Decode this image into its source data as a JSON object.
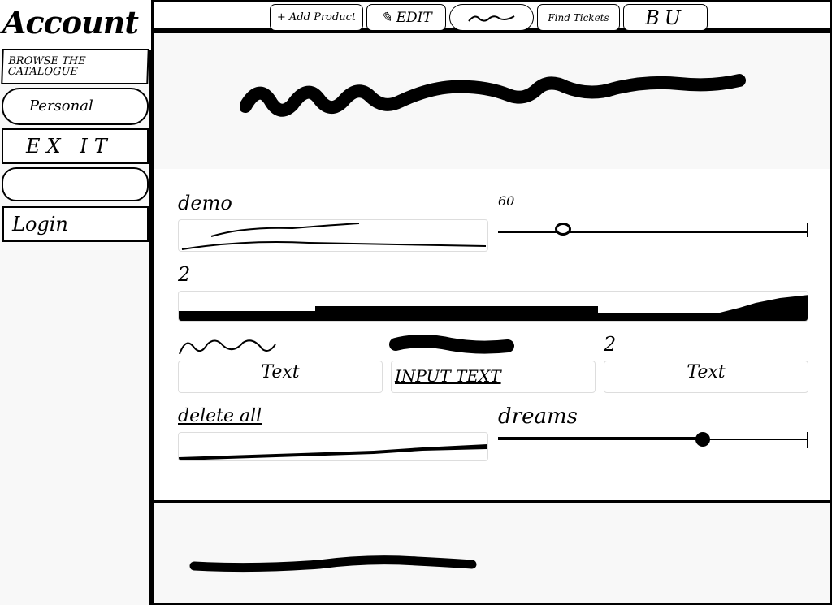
{
  "sidebar": {
    "title": "Account",
    "items": [
      {
        "label": "BROWSE THE CATALOGUE"
      },
      {
        "label": "Personal"
      },
      {
        "label": "EX IT"
      },
      {
        "label": ""
      },
      {
        "label": "Login"
      }
    ]
  },
  "toolbar": {
    "add_product": "+ Add Product",
    "edit": "EDIT",
    "find_tickets": "Find Tickets",
    "bu": "BU"
  },
  "form": {
    "field1": {
      "label": "demo"
    },
    "slider1": {
      "label": "60",
      "value": 0.21
    },
    "field2": {
      "label": "2"
    },
    "field3": {
      "value": "Text"
    },
    "field4": {
      "value": "INPUT TEXT"
    },
    "field5": {
      "label": "2",
      "value": "Text"
    },
    "field6": {
      "label": "delete all"
    },
    "slider2": {
      "label": "dreams",
      "value": 0.66
    }
  }
}
